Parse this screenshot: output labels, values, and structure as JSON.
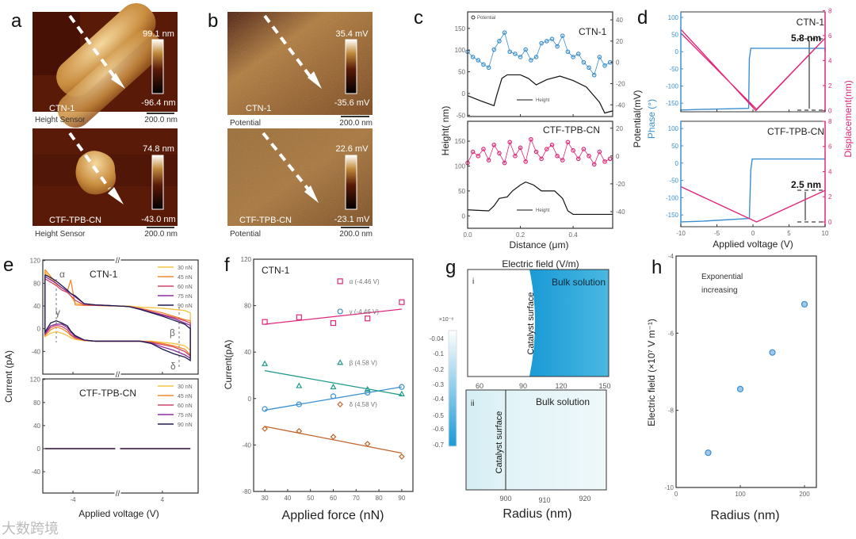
{
  "panel_labels": {
    "a": "a",
    "b": "b",
    "c": "c",
    "d": "d",
    "e": "e",
    "f": "f",
    "g": "g",
    "h": "h"
  },
  "a": {
    "top": {
      "sample": "CTN-1",
      "mode": "Height Sensor",
      "scale_max": "99.1 nm",
      "scale_min": "-96.4 nm",
      "scalebar": "200.0 nm"
    },
    "bottom": {
      "sample": "CTF-TPB-CN",
      "mode": "Height Sensor",
      "scale_max": "74.8 nm",
      "scale_min": "-43.0 nm",
      "scalebar": "200.0 nm"
    }
  },
  "b": {
    "top": {
      "sample": "CTN-1",
      "mode": "Potential",
      "scale_max": "35.4 mV",
      "scale_min": "-35.6 mV",
      "scalebar": "200.0 nm"
    },
    "bottom": {
      "sample": "CTF-TPB-CN",
      "mode": "Potential",
      "scale_max": "22.6 mV",
      "scale_min": "-23.1 mV",
      "scalebar": "200.0 nm"
    }
  },
  "c": {
    "xlabel": "Distance (μm)",
    "ylabel": "Height( nm)",
    "y2label": "Potential(mV)",
    "legend_potential": "Potential",
    "legend_height": "Height",
    "top_title": "CTN-1",
    "bottom_title": "CTF-TPB-CN"
  },
  "d": {
    "xlabel": "Applied voltage (V)",
    "ylabel": "Phase (°)",
    "y2label": "Displacement(nm)",
    "top_title": "CTN-1",
    "bottom_title": "CTF-TPB-CN",
    "top_annot": "5.8 nm",
    "bottom_annot": "2.5 nm"
  },
  "e": {
    "xlabel": "Applied voltage (V)",
    "ylabel": "Current (pA)",
    "top_title": "CTN-1",
    "bottom_title": "CTF-TPB-CN",
    "alpha": "α",
    "beta": "β",
    "gamma": "γ",
    "delta": "δ"
  },
  "f": {
    "xlabel": "Applied force (nN)",
    "ylabel": "Current(pA)",
    "title": "CTN-1"
  },
  "g": {
    "title": "Electric field (V/m)",
    "colorbar_exp": "×10⁻⁸",
    "colorbar_ticks": [
      "-0.04",
      "-0.1",
      "-0.2",
      "-0.3",
      "-0.4",
      "-0.5",
      "-0.6",
      "-0.7"
    ],
    "i": {
      "label": "i",
      "bulk": "Bulk solution",
      "surface": "Catalyst surface",
      "xticks": [
        "60",
        "90",
        "120",
        "150"
      ]
    },
    "ii": {
      "label": "ii",
      "bulk": "Bulk solution",
      "surface": "Catalyst surface",
      "xticks": [
        "900",
        "910",
        "920"
      ]
    },
    "xlabel": "Radius (nm)",
    "colors": {
      "low": "#ffffff",
      "high": "#1a9ad6"
    }
  },
  "h": {
    "xlabel": "Radius (nm)",
    "ylabel": "Electric field (×10⁷ V m⁻¹)",
    "annotation_line1": "Exponential",
    "annotation_line2": "increasing"
  },
  "watermark": "大数跨境",
  "chart_data": [
    {
      "id": "c",
      "type": "line",
      "xlim": [
        0,
        0.55
      ],
      "xticks": [
        0,
        0.2,
        0.4
      ],
      "xticklabels": [
        "0.0",
        "0.2",
        "0.4"
      ],
      "subplots": [
        {
          "title": "CTN-1",
          "ylim": [
            -53,
            188
          ],
          "yticks": [
            -50,
            0,
            50,
            100,
            150
          ],
          "y2lim": [
            -51,
            47.5
          ],
          "y2ticks": [
            -40,
            -20,
            0,
            20,
            40
          ],
          "series": [
            {
              "name": "Potential",
              "axis": "right",
              "color": "#3b8fd0",
              "marker": "circle",
              "x": [
                0,
                0.02,
                0.04,
                0.06,
                0.08,
                0.1,
                0.12,
                0.14,
                0.16,
                0.18,
                0.2,
                0.22,
                0.24,
                0.26,
                0.28,
                0.3,
                0.32,
                0.34,
                0.36,
                0.38,
                0.4,
                0.42,
                0.44,
                0.46,
                0.48,
                0.5,
                0.52,
                0.54
              ],
              "y": [
                10,
                5,
                2,
                -2,
                -5,
                12,
                20,
                28,
                10,
                8,
                5,
                12,
                2,
                5,
                18,
                20,
                22,
                15,
                25,
                10,
                5,
                8,
                0,
                -5,
                -12,
                5,
                -3,
                0
              ]
            },
            {
              "name": "Height",
              "axis": "left",
              "color": "#111111",
              "x": [
                0,
                0.05,
                0.1,
                0.11,
                0.13,
                0.15,
                0.2,
                0.23,
                0.26,
                0.3,
                0.35,
                0.4,
                0.45,
                0.5,
                0.52,
                0.55
              ],
              "y": [
                -5,
                -17,
                -28,
                -5,
                35,
                43,
                43,
                35,
                20,
                32,
                40,
                30,
                15,
                -20,
                -45,
                -40
              ]
            }
          ]
        },
        {
          "title": "CTF-TPB-CN",
          "ylim": [
            -25,
            190
          ],
          "yticks": [
            0,
            50,
            100,
            150
          ],
          "y2lim": [
            -52,
            25
          ],
          "y2ticks": [
            -40,
            -20,
            0,
            20
          ],
          "series": [
            {
              "name": "Potential",
              "axis": "right",
              "color": "#e0287a",
              "marker": "circle",
              "x": [
                0,
                0.02,
                0.04,
                0.06,
                0.08,
                0.1,
                0.12,
                0.14,
                0.16,
                0.18,
                0.2,
                0.22,
                0.24,
                0.26,
                0.28,
                0.3,
                0.32,
                0.34,
                0.36,
                0.38,
                0.4,
                0.42,
                0.44,
                0.46,
                0.48,
                0.5,
                0.52,
                0.54
              ],
              "y": [
                -5,
                3,
                0,
                5,
                -3,
                8,
                2,
                -5,
                10,
                0,
                6,
                -4,
                12,
                3,
                -2,
                5,
                8,
                0,
                -3,
                10,
                4,
                -2,
                5,
                0,
                -6,
                3,
                -4,
                -2
              ]
            },
            {
              "name": "Height",
              "axis": "left",
              "color": "#111111",
              "x": [
                0,
                0.08,
                0.1,
                0.12,
                0.15,
                0.17,
                0.2,
                0.22,
                0.25,
                0.28,
                0.33,
                0.36,
                0.38,
                0.4,
                0.55
              ],
              "y": [
                12,
                10,
                20,
                35,
                38,
                50,
                62,
                68,
                62,
                50,
                50,
                35,
                10,
                3,
                3
              ]
            }
          ]
        }
      ]
    },
    {
      "id": "d",
      "type": "line",
      "xlim": [
        -10,
        10
      ],
      "xticks": [
        -10,
        -5,
        0,
        5,
        10
      ],
      "subplots": [
        {
          "title": "CTN-1",
          "ylim": [
            -175,
            116
          ],
          "yticks": [
            -150,
            -100,
            -50,
            0,
            50,
            100
          ],
          "y2lim": [
            -0.1,
            7.9
          ],
          "y2ticks": [
            0,
            2,
            4,
            6,
            8
          ],
          "series": [
            {
              "name": "Phase",
              "axis": "left",
              "color": "#3b8fd0",
              "x": [
                -10,
                -7,
                -0.6,
                -0.5,
                -0.3,
                10,
                10
              ],
              "y": [
                -170,
                -168,
                -165,
                -20,
                10,
                10,
                0
              ]
            },
            {
              "name": "Displacement",
              "axis": "right",
              "color": "#e0287a",
              "x": [
                -10,
                0.4,
                10,
                0.5,
                -10
              ],
              "y": [
                6.5,
                0,
                5.8,
                0.1,
                6.2
              ]
            }
          ]
        },
        {
          "title": "CTF-TPB-CN",
          "ylim": [
            -184,
            121
          ],
          "yticks": [
            -150,
            -100,
            -50,
            0,
            50,
            100
          ],
          "y2lim": [
            -0.38,
            8
          ],
          "y2ticks": [
            0,
            2,
            4,
            6,
            8
          ],
          "series": [
            {
              "name": "Phase",
              "axis": "left",
              "color": "#3b8fd0",
              "x": [
                -10,
                -7,
                -0.5,
                -0.3,
                -0.1,
                10
              ],
              "y": [
                -170,
                -168,
                -160,
                -20,
                12,
                12
              ]
            },
            {
              "name": "Displacement",
              "axis": "right",
              "color": "#e0287a",
              "x": [
                -10,
                0.5,
                10
              ],
              "y": [
                2.8,
                0,
                2.5
              ]
            }
          ]
        }
      ]
    },
    {
      "id": "e",
      "type": "line",
      "xlim": [
        -6.7,
        7.2
      ],
      "xticks": [
        -4,
        4
      ],
      "legend": [
        "30 nN",
        "45 nN",
        "60 nN",
        "75 nN",
        "90 nN"
      ],
      "colors": [
        "#f5c242",
        "#f08a2c",
        "#d4456a",
        "#8b2d9e",
        "#1e1b4b"
      ],
      "subplots": [
        {
          "title": "CTN-1",
          "ylim": [
            -80,
            121
          ],
          "yticks": [
            -40,
            0,
            40,
            80,
            120
          ],
          "x": [
            -6.5,
            -6,
            -5.5,
            -5,
            -4.5,
            -4.2,
            -3.8,
            -3,
            -2,
            -1,
            0,
            1,
            2,
            3,
            4,
            5,
            6,
            6.5
          ],
          "series_up": [
            [
              100,
              88,
              78,
              72,
              65,
              58,
              45,
              42,
              41,
              41,
              40,
              40,
              38,
              37,
              36,
              34,
              32,
              28
            ],
            [
              104,
              92,
              80,
              72,
              66,
              86,
              42,
              41,
              41,
              40,
              40,
              39,
              36,
              32,
              28,
              22,
              16,
              14
            ],
            [
              88,
              82,
              76,
              68,
              64,
              58,
              50,
              42,
              41,
              41,
              40,
              39,
              35,
              30,
              25,
              20,
              14,
              10
            ],
            [
              92,
              86,
              80,
              72,
              66,
              62,
              56,
              44,
              42,
              41,
              40,
              39,
              35,
              29,
              24,
              18,
              10,
              6
            ],
            [
              95,
              90,
              84,
              76,
              68,
              62,
              58,
              44,
              42,
              41,
              40,
              39,
              34,
              28,
              22,
              15,
              8,
              0
            ]
          ],
          "series_down": [
            [
              -14,
              -8,
              -5,
              -8,
              -12,
              -16,
              -19,
              -21,
              -22,
              -22,
              -22,
              -22,
              -22,
              -22,
              -24,
              -26,
              -30,
              -38
            ],
            [
              -12,
              -2,
              3,
              0,
              -6,
              -12,
              -17,
              -21,
              -22,
              -22,
              -22,
              -22,
              -22,
              -23,
              -26,
              -30,
              -36,
              -46
            ],
            [
              -10,
              2,
              6,
              4,
              -2,
              -10,
              -16,
              -20,
              -22,
              -22,
              -22,
              -22,
              -22,
              -24,
              -28,
              -32,
              -40,
              -48
            ],
            [
              -8,
              5,
              8,
              8,
              2,
              -6,
              -14,
              -20,
              -22,
              -22,
              -22,
              -22,
              -22,
              -25,
              -32,
              -38,
              -46,
              -52
            ],
            [
              -6,
              10,
              14,
              10,
              5,
              -4,
              -12,
              -20,
              -22,
              -22,
              -22,
              -22,
              -22,
              -26,
              -36,
              -44,
              -50,
              -56
            ]
          ]
        },
        {
          "title": "CTF-TPB-CN",
          "ylim": [
            -77,
            121
          ],
          "yticks": [
            -40,
            0,
            40,
            80,
            120
          ],
          "x": [
            -6.5,
            6.5
          ],
          "series_flat": [
            0,
            0,
            0,
            0,
            0
          ]
        }
      ]
    },
    {
      "id": "f",
      "type": "scatter",
      "xlim": [
        25.1,
        94.9
      ],
      "ylim": [
        -80,
        120
      ],
      "xticks": [
        30,
        40,
        50,
        60,
        70,
        80,
        90
      ],
      "yticks": [
        -80,
        -40,
        0,
        40,
        80,
        120
      ],
      "x": [
        30,
        45,
        60,
        75,
        90
      ],
      "series": [
        {
          "name": "α (-4.46 V)",
          "marker": "square",
          "color": "#e0287a",
          "values": [
            66,
            70,
            65,
            69,
            83
          ],
          "fit": [
            64,
            77
          ]
        },
        {
          "name": "γ (-4.46 V)",
          "marker": "circle",
          "color": "#3b8fd0",
          "values": [
            -9,
            -5,
            2,
            5,
            10
          ],
          "fit": [
            -10,
            10
          ]
        },
        {
          "name": "β (4.58 V)",
          "marker": "triangle",
          "color": "#1f9a8a",
          "values": [
            30,
            11,
            10,
            8,
            4
          ],
          "fit": [
            24,
            3
          ]
        },
        {
          "name": "δ (4.58 V)",
          "marker": "diamond",
          "color": "#c0652a",
          "values": [
            -26,
            -28,
            -33,
            -39,
            -50
          ],
          "fit": [
            -24,
            -47
          ]
        }
      ]
    },
    {
      "id": "h",
      "type": "scatter",
      "xlim": [
        0,
        218.5
      ],
      "ylim": [
        -10,
        -4
      ],
      "xticks": [
        0,
        100,
        200
      ],
      "yticks": [
        -10,
        -8,
        -6,
        -4
      ],
      "x": [
        50,
        100,
        150,
        200
      ],
      "y": [
        -9.1,
        -7.45,
        -6.5,
        -5.25
      ],
      "color": "#3b8fd0"
    }
  ]
}
